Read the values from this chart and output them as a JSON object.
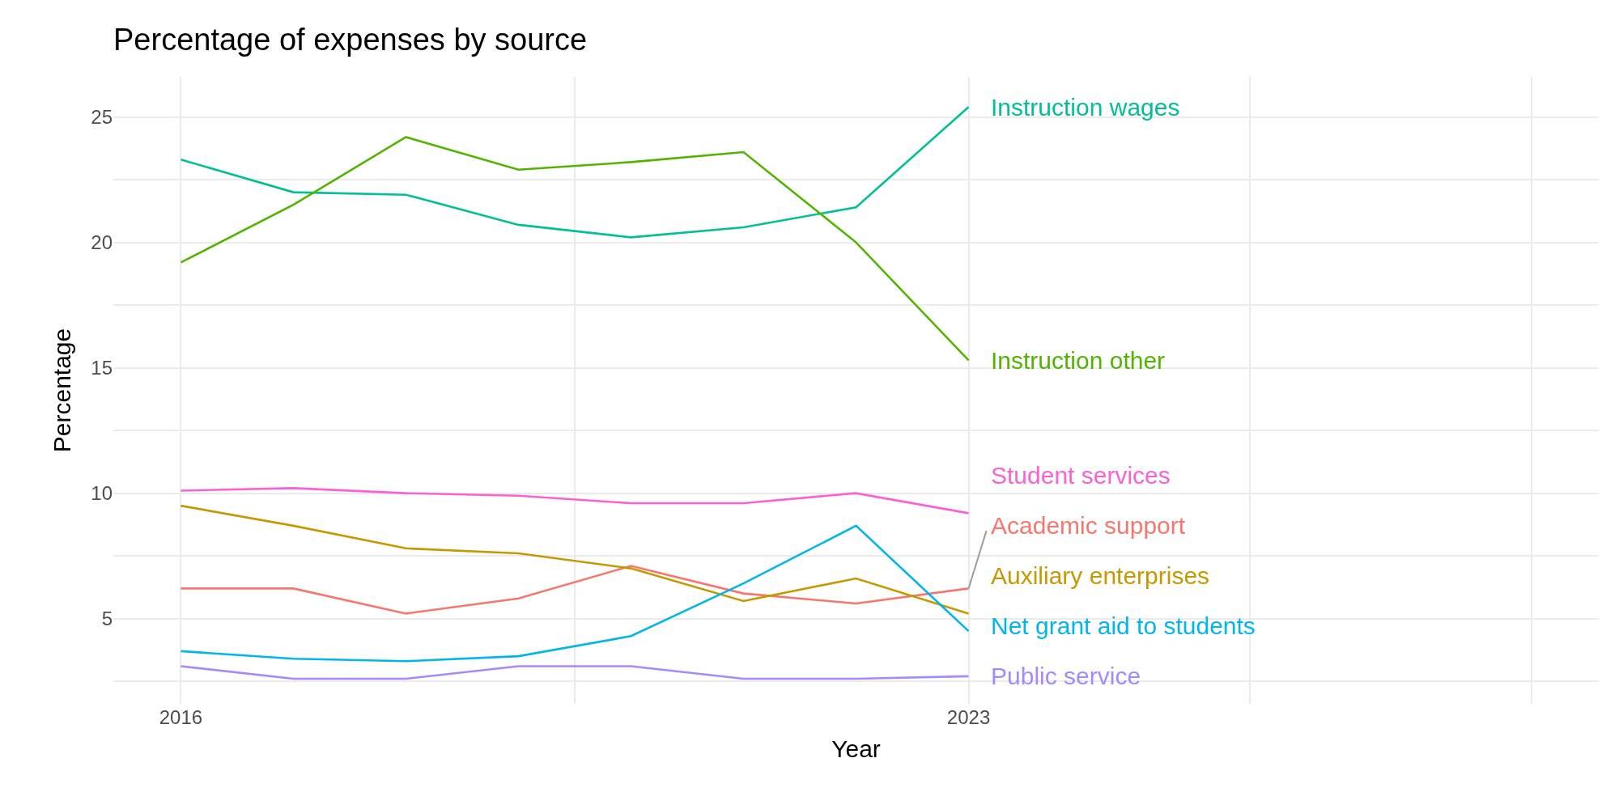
{
  "chart_data": {
    "type": "line",
    "title": "Percentage of expenses by source",
    "xlabel": "Year",
    "ylabel": "Percentage",
    "x": [
      2016,
      2017,
      2018,
      2019,
      2020,
      2021,
      2022,
      2023
    ],
    "series": [
      {
        "name": "Instruction wages",
        "color": "#00c094",
        "values": [
          23.3,
          22.0,
          21.9,
          20.7,
          20.2,
          20.6,
          21.4,
          25.4
        ]
      },
      {
        "name": "Instruction other",
        "color": "#53b400",
        "values": [
          19.2,
          21.5,
          24.2,
          22.9,
          23.2,
          23.6,
          20.0,
          15.3
        ]
      },
      {
        "name": "Student services",
        "color": "#fb61d7",
        "values": [
          10.1,
          10.2,
          10.0,
          9.9,
          9.6,
          9.6,
          10.0,
          9.2
        ]
      },
      {
        "name": "Academic support",
        "color": "#f8766d",
        "values": [
          6.2,
          6.2,
          5.2,
          5.8,
          7.1,
          6.0,
          5.6,
          6.2
        ]
      },
      {
        "name": "Auxiliary enterprises",
        "color": "#c49a00",
        "values": [
          9.5,
          8.7,
          7.8,
          7.6,
          7.0,
          5.7,
          6.6,
          5.2
        ]
      },
      {
        "name": "Net grant aid to students",
        "color": "#00b6eb",
        "values": [
          3.7,
          3.4,
          3.3,
          3.5,
          4.3,
          6.4,
          8.7,
          4.5
        ]
      },
      {
        "name": "Public service",
        "color": "#a58aff",
        "values": [
          3.1,
          2.6,
          2.6,
          3.1,
          3.1,
          2.6,
          2.6,
          2.7
        ]
      }
    ],
    "xlim": [
      2015.4,
      2028.6
    ],
    "xticks": [
      2016,
      {
        "value": 2019.5,
        "label": null
      },
      2023,
      {
        "value": 2025.5,
        "label": null
      },
      {
        "value": 2028,
        "label": null
      }
    ],
    "ylim": [
      1.6,
      26.6
    ],
    "yticks": [
      {
        "value": 2.5,
        "label": null
      },
      5,
      {
        "value": 7.5,
        "label": null
      },
      10,
      {
        "value": 12.5,
        "label": null
      },
      15,
      {
        "value": 17.5,
        "label": null
      },
      20,
      {
        "value": 22.5,
        "label": null
      },
      25
    ],
    "grid": true,
    "legend": false,
    "line_style": "solid",
    "marker": "none"
  }
}
